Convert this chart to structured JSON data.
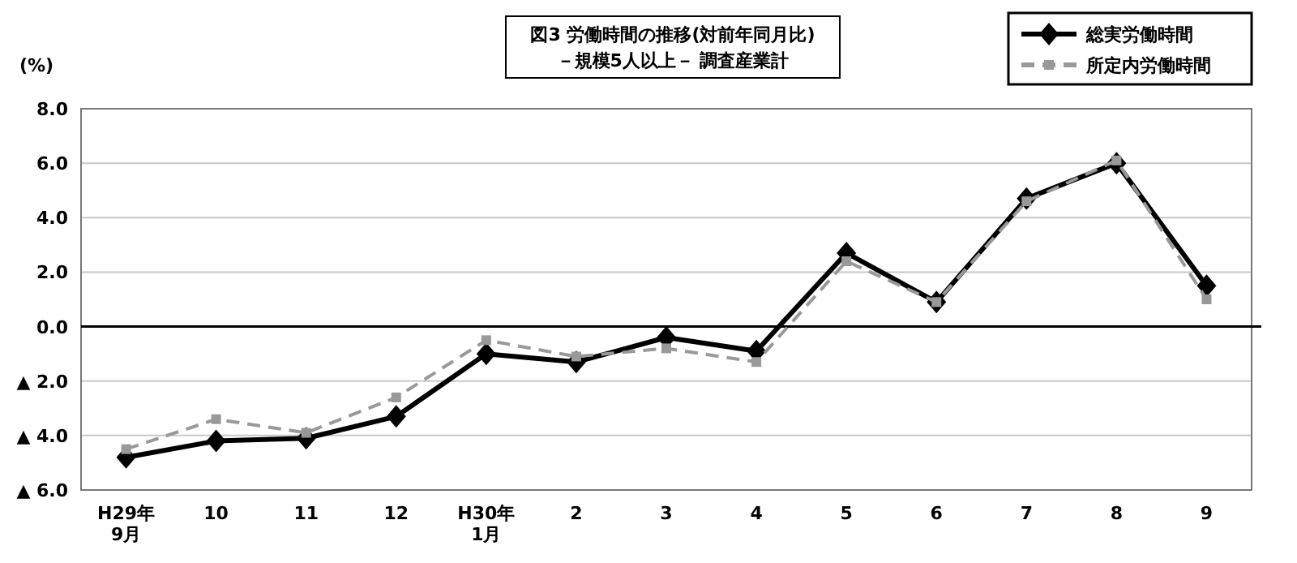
{
  "chart_data": {
    "type": "line",
    "title": "図3 労働時間の推移(対前年同月比)",
    "subtitle": "－規模5人以上－ 調査産業計",
    "ylabel": "(%)",
    "categories": [
      "H29年\n9月",
      "10",
      "11",
      "12",
      "H30年\n1月",
      "2",
      "3",
      "4",
      "5",
      "6",
      "7",
      "8",
      "9"
    ],
    "series": [
      {
        "name": "総実労働時間",
        "color": "#000000",
        "marker": "diamond",
        "line_style": "solid",
        "values": [
          -4.8,
          -4.2,
          -4.1,
          -3.3,
          -1.0,
          -1.3,
          -0.4,
          -0.9,
          2.7,
          0.9,
          4.7,
          6.0,
          1.5
        ]
      },
      {
        "name": "所定内労働時間",
        "color": "#999999",
        "marker": "square",
        "line_style": "dashed",
        "values": [
          -4.5,
          -3.4,
          -3.9,
          -2.6,
          -0.5,
          -1.1,
          -0.8,
          -1.3,
          2.4,
          0.9,
          4.6,
          6.1,
          1.0
        ]
      }
    ],
    "ylim": [
      -6,
      8
    ],
    "yticks": [
      {
        "value": -6,
        "label": "▲ 6.0"
      },
      {
        "value": -4,
        "label": "▲ 4.0"
      },
      {
        "value": -2,
        "label": "▲ 2.0"
      },
      {
        "value": 0,
        "label": "0.0"
      },
      {
        "value": 2,
        "label": "2.0"
      },
      {
        "value": 4,
        "label": "4.0"
      },
      {
        "value": 6,
        "label": "6.0"
      },
      {
        "value": 8,
        "label": "8.0"
      }
    ],
    "ref_lines": [
      {
        "axis": "y",
        "value": 0,
        "color": "#000000"
      }
    ],
    "grid": "y",
    "legend": "top right"
  }
}
